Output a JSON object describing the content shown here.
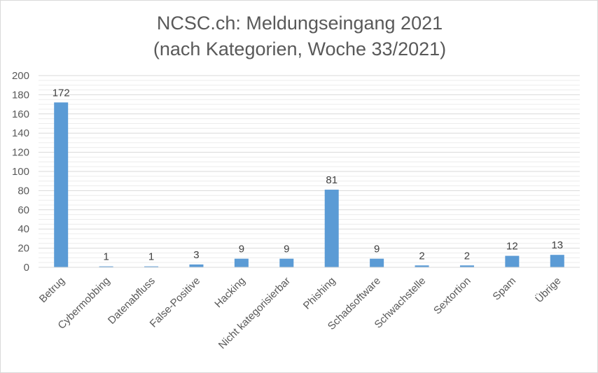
{
  "chart_data": {
    "type": "bar",
    "title": "NCSC.ch: Meldungseingang 2021",
    "subtitle": "(nach Kategorien, Woche 33/2021)",
    "categories": [
      "Betrug",
      "Cybermobbing",
      "Datenabfluss",
      "False-Positive",
      "Hacking",
      "Nicht kategorisierbar",
      "Phishing",
      "Schadsoftware",
      "Schwachstelle",
      "Sextortion",
      "Spam",
      "Übrige"
    ],
    "values": [
      172,
      1,
      1,
      3,
      9,
      9,
      81,
      9,
      2,
      2,
      12,
      13
    ],
    "ylim": [
      0,
      200
    ],
    "yticks": [
      "0",
      "20",
      "40",
      "60",
      "80",
      "100",
      "120",
      "140",
      "160",
      "180",
      "200"
    ],
    "xlabel": "",
    "ylabel": "",
    "legend": "none",
    "grid": true,
    "bar_color": "#5b9bd5"
  }
}
